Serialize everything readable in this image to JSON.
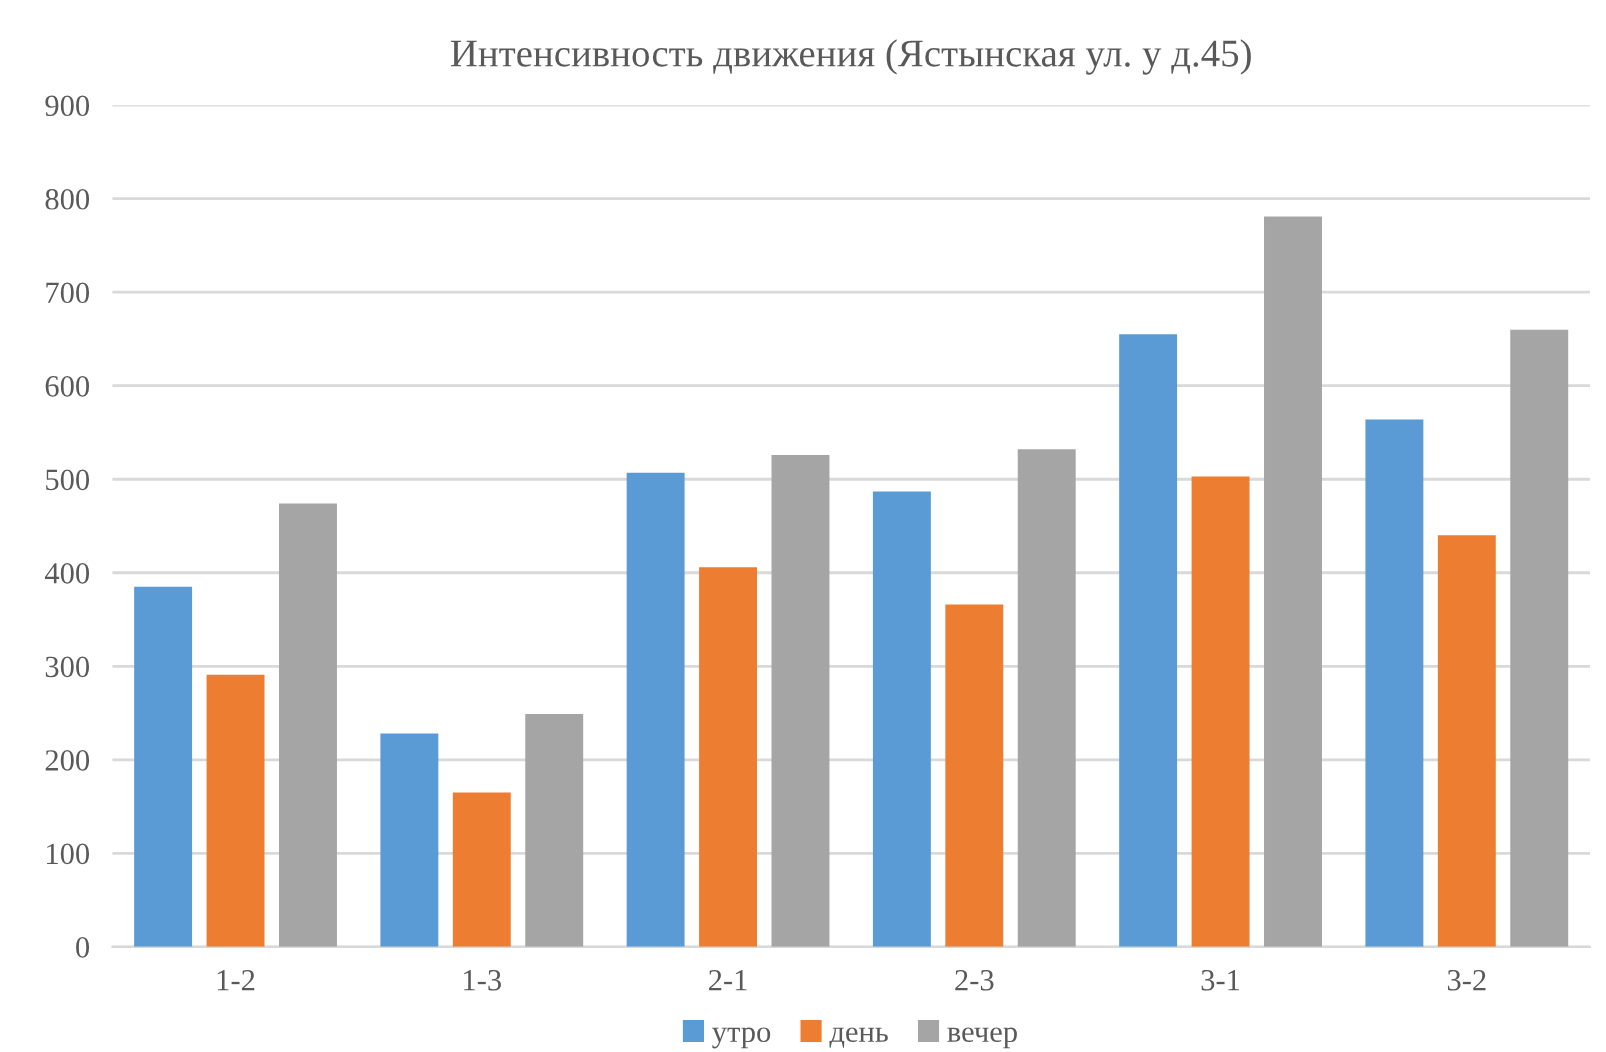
{
  "chart_data": {
    "type": "bar",
    "title": "Интенсивность движения (Ястынская ул. у д.45)",
    "categories": [
      "1-2",
      "1-3",
      "2-1",
      "2-3",
      "3-1",
      "3-2"
    ],
    "series": [
      {
        "name": "утро",
        "color": "#5b9bd5",
        "values": [
          385,
          228,
          507,
          487,
          655,
          564
        ]
      },
      {
        "name": "день",
        "color": "#ed7d31",
        "values": [
          291,
          165,
          406,
          366,
          503,
          440
        ]
      },
      {
        "name": "вечер",
        "color": "#a5a5a5",
        "values": [
          474,
          249,
          526,
          532,
          781,
          660
        ]
      }
    ],
    "ylim": [
      0,
      900
    ],
    "yticks": [
      0,
      100,
      200,
      300,
      400,
      500,
      600,
      700,
      800,
      900
    ],
    "grid": "y",
    "legend": "bottom"
  }
}
